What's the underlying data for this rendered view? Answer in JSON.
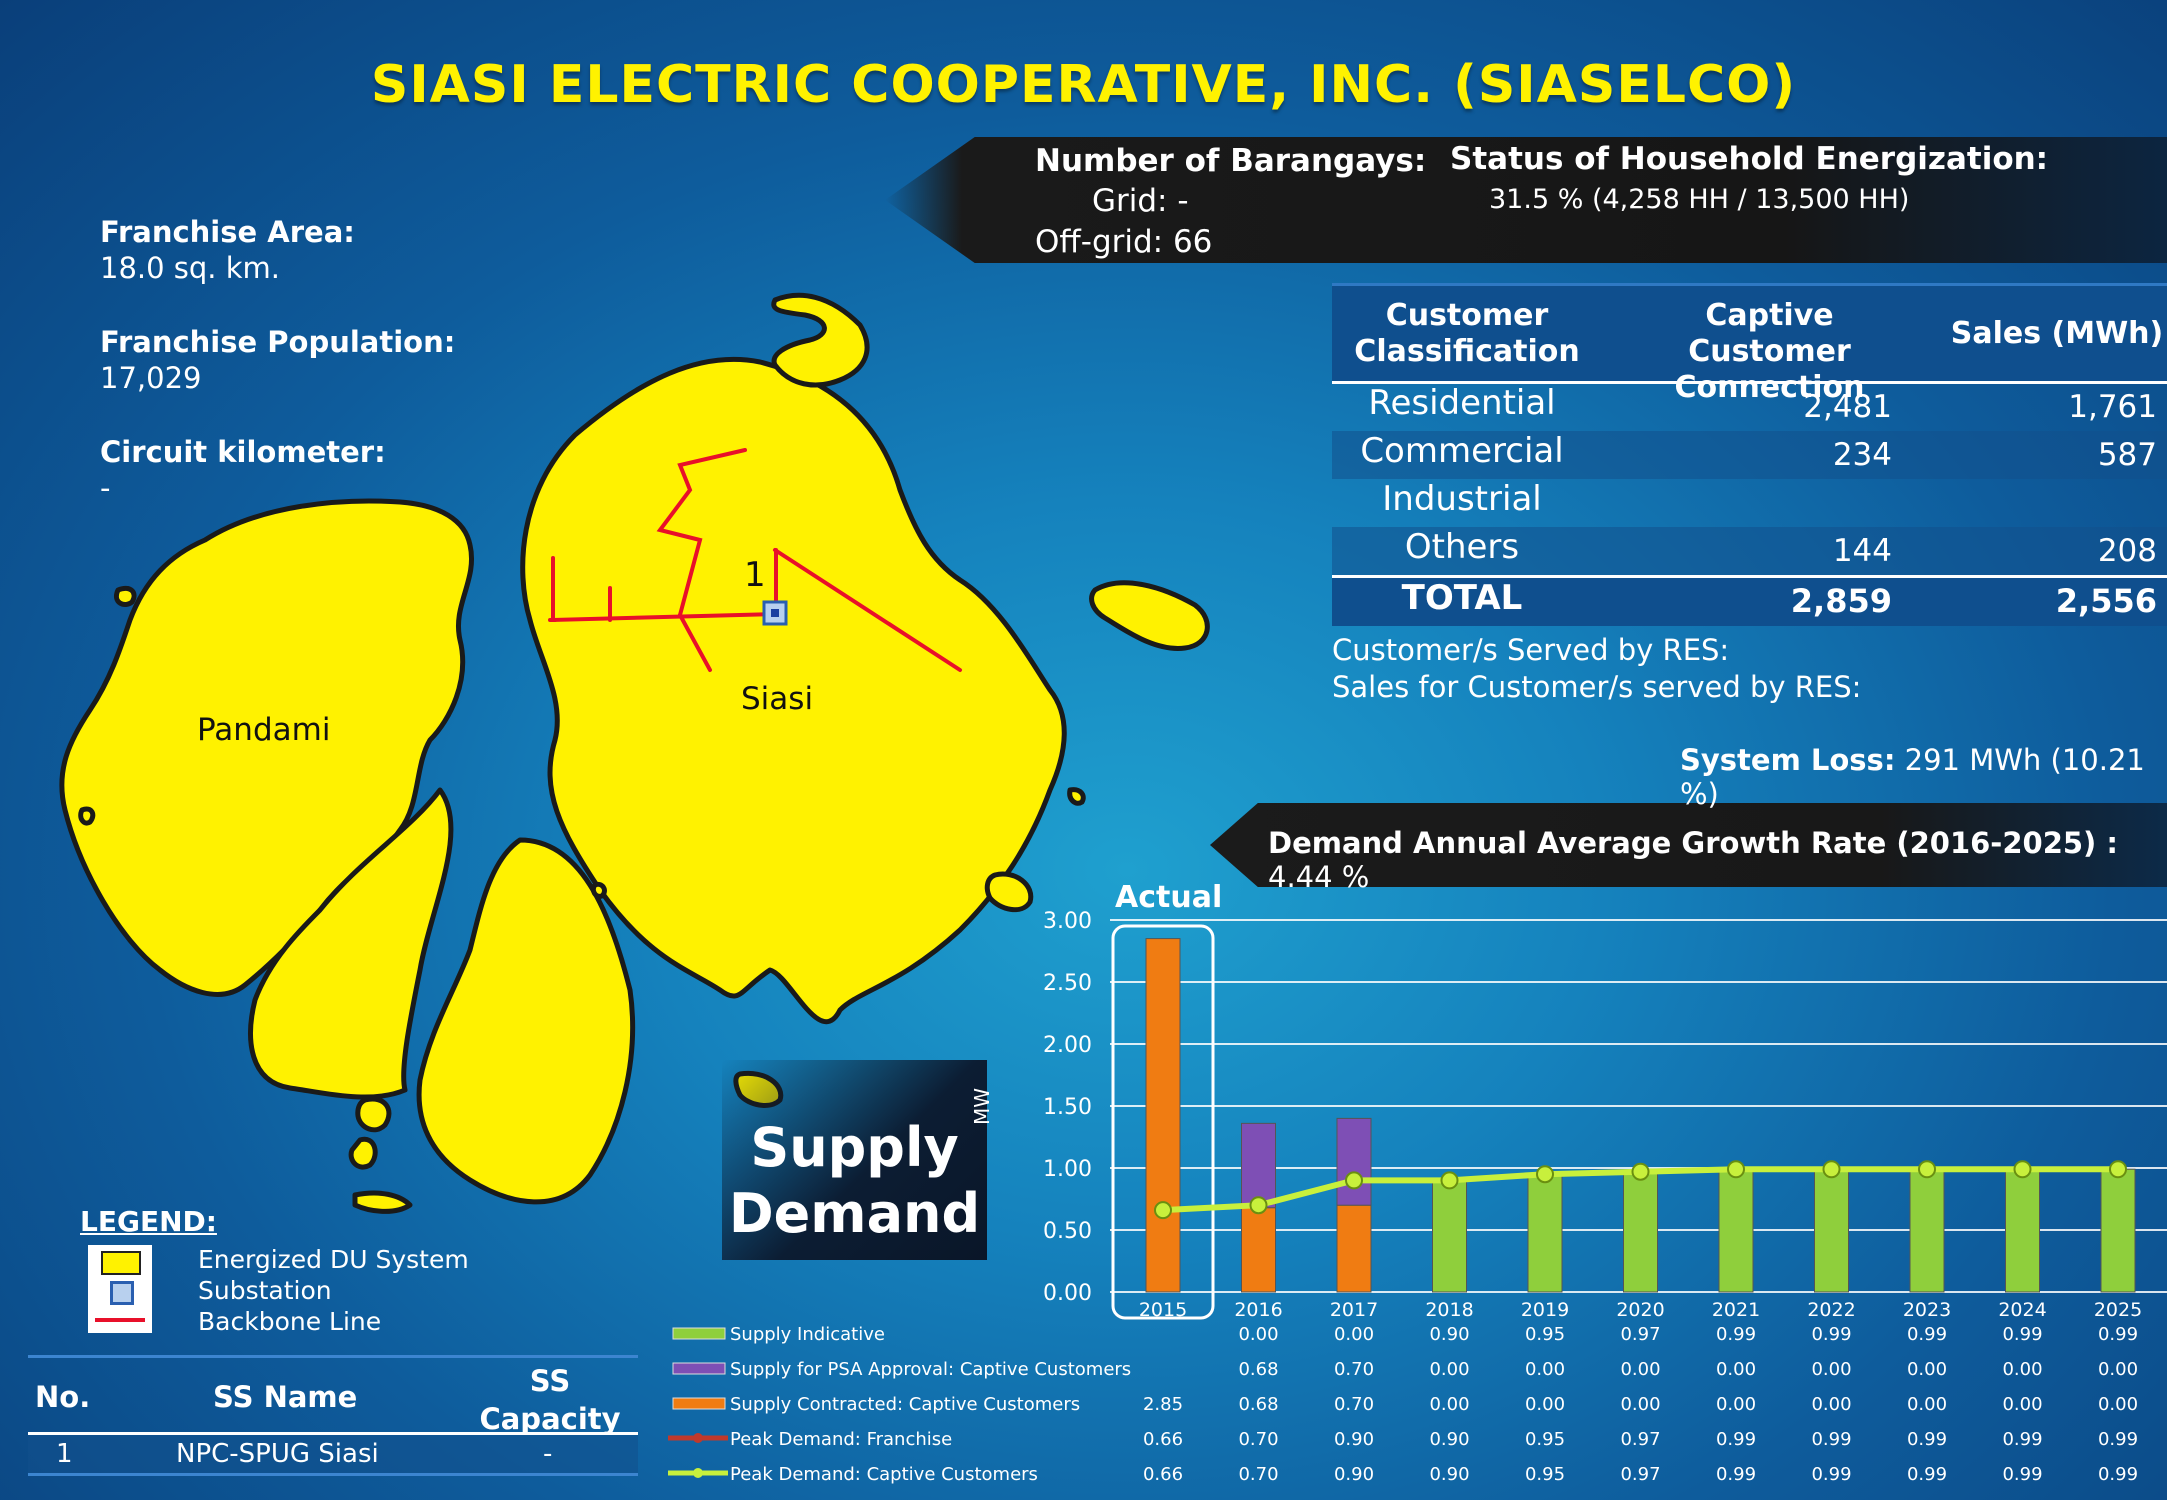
{
  "title": "SIASI ELECTRIC COOPERATIVE, INC. (SIASELCO)",
  "franchise": {
    "area_label": "Franchise Area:",
    "area_value": "18.0 sq. km.",
    "population_label": "Franchise Population:",
    "population_value": "17,029",
    "circuit_label": "Circuit  kilometer:",
    "circuit_value": "-"
  },
  "barangays": {
    "label": "Number of Barangays:",
    "grid": "Grid:  -",
    "offgrid": "Off-grid:  66"
  },
  "energization": {
    "label": "Status of Household Energization:",
    "value": "31.5 % (4,258 HH / 13,500 HH)"
  },
  "customer_table": {
    "headers": [
      "Customer Classification",
      "Captive Customer Connection",
      "Sales (MWh)"
    ],
    "rows": [
      {
        "cls": "Residential",
        "conn": "2,481",
        "sales": "1,761"
      },
      {
        "cls": "Commercial",
        "conn": "234",
        "sales": "587"
      },
      {
        "cls": "Industrial",
        "conn": "",
        "sales": ""
      },
      {
        "cls": "Others",
        "conn": "144",
        "sales": "208"
      }
    ],
    "total": {
      "cls": "TOTAL",
      "conn": "2,859",
      "sales": "2,556"
    }
  },
  "res": {
    "served": "Customer/s Served by RES:",
    "sales": "Sales for Customer/s served by RES:"
  },
  "system_loss": {
    "label": "System Loss:",
    "value": "291 MWh (10.21 %)"
  },
  "growth": {
    "label": "Demand Annual Average Growth Rate (2016-2025) :",
    "value": "4.44 %"
  },
  "map": {
    "island_left": "Pandami",
    "island_main": "Siasi",
    "substation_num": "1",
    "colors": {
      "land": "#fff200",
      "backbone": "#e8102a",
      "coast": "#1a1a1a"
    }
  },
  "legend": {
    "title": "LEGEND:",
    "items": [
      "Energized DU System",
      "Substation",
      "Backbone Line"
    ]
  },
  "ss_table": {
    "headers": [
      "No.",
      "SS Name",
      "SS Capacity"
    ],
    "rows": [
      {
        "no": "1",
        "name": "NPC-SPUG Siasi",
        "cap": "-"
      }
    ]
  },
  "supply_demand_label": [
    "Supply",
    "Demand"
  ],
  "chart_data": {
    "type": "bar",
    "ylabel": "MW",
    "ylim": [
      0,
      3.0
    ],
    "yticks": [
      "0.00",
      "0.50",
      "1.00",
      "1.50",
      "2.00",
      "2.50",
      "3.00"
    ],
    "actual_label": "Actual",
    "categories": [
      "2015",
      "2016",
      "2017",
      "2018",
      "2019",
      "2020",
      "2021",
      "2022",
      "2023",
      "2024",
      "2025"
    ],
    "series": [
      {
        "name": "Supply Indicative",
        "kind": "bar",
        "color": "#8fcf3c",
        "values": [
          null,
          0.0,
          0.0,
          0.9,
          0.95,
          0.97,
          0.99,
          0.99,
          0.99,
          0.99,
          0.99
        ],
        "labels": [
          "",
          "0.00",
          "0.00",
          "0.90",
          "0.95",
          "0.97",
          "0.99",
          "0.99",
          "0.99",
          "0.99",
          "0.99"
        ]
      },
      {
        "name": "Supply for PSA Approval:  Captive Customers",
        "kind": "bar",
        "color": "#7e4fb5",
        "values": [
          null,
          0.68,
          0.7,
          0.0,
          0.0,
          0.0,
          0.0,
          0.0,
          0.0,
          0.0,
          0.0
        ],
        "labels": [
          "",
          "0.68",
          "0.70",
          "0.00",
          "0.00",
          "0.00",
          "0.00",
          "0.00",
          "0.00",
          "0.00",
          "0.00"
        ]
      },
      {
        "name": "Supply Contracted:  Captive Customers",
        "kind": "bar",
        "color": "#f07c12",
        "values": [
          2.85,
          0.68,
          0.7,
          0.0,
          0.0,
          0.0,
          0.0,
          0.0,
          0.0,
          0.0,
          0.0
        ],
        "labels": [
          "2.85",
          "0.68",
          "0.70",
          "0.00",
          "0.00",
          "0.00",
          "0.00",
          "0.00",
          "0.00",
          "0.00",
          "0.00"
        ]
      },
      {
        "name": "Peak Demand:  Franchise",
        "kind": "line",
        "color": "#c0392b",
        "values": [
          0.66,
          0.7,
          0.9,
          0.9,
          0.95,
          0.97,
          0.99,
          0.99,
          0.99,
          0.99,
          0.99
        ],
        "labels": [
          "0.66",
          "0.70",
          "0.90",
          "0.90",
          "0.95",
          "0.97",
          "0.99",
          "0.99",
          "0.99",
          "0.99",
          "0.99"
        ]
      },
      {
        "name": "Peak Demand:  Captive Customers",
        "kind": "line",
        "color": "#c8f03c",
        "values": [
          0.66,
          0.7,
          0.9,
          0.9,
          0.95,
          0.97,
          0.99,
          0.99,
          0.99,
          0.99,
          0.99
        ],
        "labels": [
          "0.66",
          "0.70",
          "0.90",
          "0.90",
          "0.95",
          "0.97",
          "0.99",
          "0.99",
          "0.99",
          "0.99",
          "0.99"
        ]
      }
    ]
  }
}
